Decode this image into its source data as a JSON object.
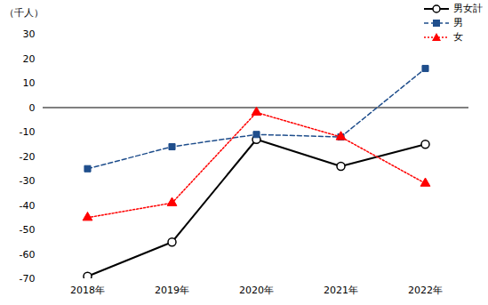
{
  "chart_data": {
    "type": "line",
    "y_label": "（千人）",
    "categories": [
      "2018年",
      "2019年",
      "2020年",
      "2021年",
      "2022年"
    ],
    "series": [
      {
        "name": "男女計",
        "color": "#000000",
        "marker": "circle",
        "line_style": "solid",
        "values": [
          -69,
          -55,
          -13,
          -24,
          -15
        ]
      },
      {
        "name": "男",
        "color": "#1f4e8c",
        "marker": "square",
        "line_style": "dashed",
        "values": [
          -25,
          -16,
          -11,
          -12,
          16
        ]
      },
      {
        "name": "女",
        "color": "#ff0000",
        "marker": "triangle",
        "line_style": "dotted",
        "values": [
          -45,
          -39,
          -2,
          -12,
          -31
        ]
      }
    ],
    "ylim": [
      -70,
      30
    ],
    "yticks": [
      -70,
      -60,
      -50,
      -40,
      -30,
      -20,
      -10,
      0,
      10,
      20,
      30
    ],
    "grid": false,
    "legend": "top-right"
  }
}
